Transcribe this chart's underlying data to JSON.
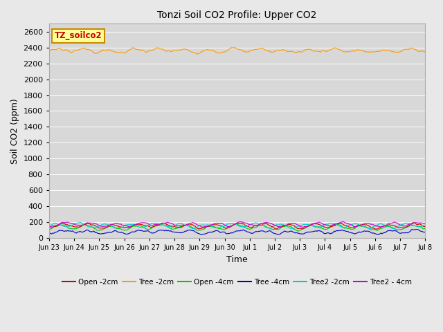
{
  "title": "Tonzi Soil CO2 Profile: Upper CO2",
  "xlabel": "Time",
  "ylabel": "Soil CO2 (ppm)",
  "ylim": [
    0,
    2700
  ],
  "yticks": [
    0,
    200,
    400,
    600,
    800,
    1000,
    1200,
    1400,
    1600,
    1800,
    2000,
    2200,
    2400,
    2600
  ],
  "fig_bg_color": "#e8e8e8",
  "plot_bg_color": "#d8d8d8",
  "grid_color": "#ffffff",
  "series": {
    "Open_2cm": {
      "color": "#cc0000",
      "base": 150,
      "amp": 25,
      "noise": 12
    },
    "Tree_2cm": {
      "color": "#ff9900",
      "base": 2360,
      "amp": 20,
      "noise": 15
    },
    "Open_4cm": {
      "color": "#00cc00",
      "base": 130,
      "amp": 28,
      "noise": 12
    },
    "Tree_4cm": {
      "color": "#0000cc",
      "base": 75,
      "amp": 18,
      "noise": 15
    },
    "Tree2_2cm": {
      "color": "#00cccc",
      "base": 155,
      "amp": 25,
      "noise": 10
    },
    "Tree2_4cm": {
      "color": "#cc00cc",
      "base": 168,
      "amp": 22,
      "noise": 11
    }
  },
  "plot_order": [
    "Tree_4cm",
    "Open_4cm",
    "Open_2cm",
    "Tree2_2cm",
    "Tree2_4cm",
    "Tree_2cm"
  ],
  "legend_labels": [
    "Open -2cm",
    "Tree -2cm",
    "Open -4cm",
    "Tree -4cm",
    "Tree2 -2cm",
    "Tree2 - 4cm"
  ],
  "legend_colors": [
    "#cc0000",
    "#ff9900",
    "#00cc00",
    "#0000cc",
    "#00cccc",
    "#cc00cc"
  ],
  "annotation_text": "TZ_soilco2",
  "annotation_color": "#cc0000",
  "annotation_bg": "#ffff99",
  "annotation_border": "#cc8800",
  "xtick_labels": [
    "Jun 23",
    "Jun 24",
    "Jun 25",
    "Jun 26",
    "Jun 27",
    "Jun 28",
    "Jun 29",
    "Jun 30",
    "Jul 1",
    "Jul 2",
    "Jul 3",
    "Jul 4",
    "Jul 5",
    "Jul 6",
    "Jul 7",
    "Jul 8"
  ],
  "n_points": 480,
  "n_days": 15
}
